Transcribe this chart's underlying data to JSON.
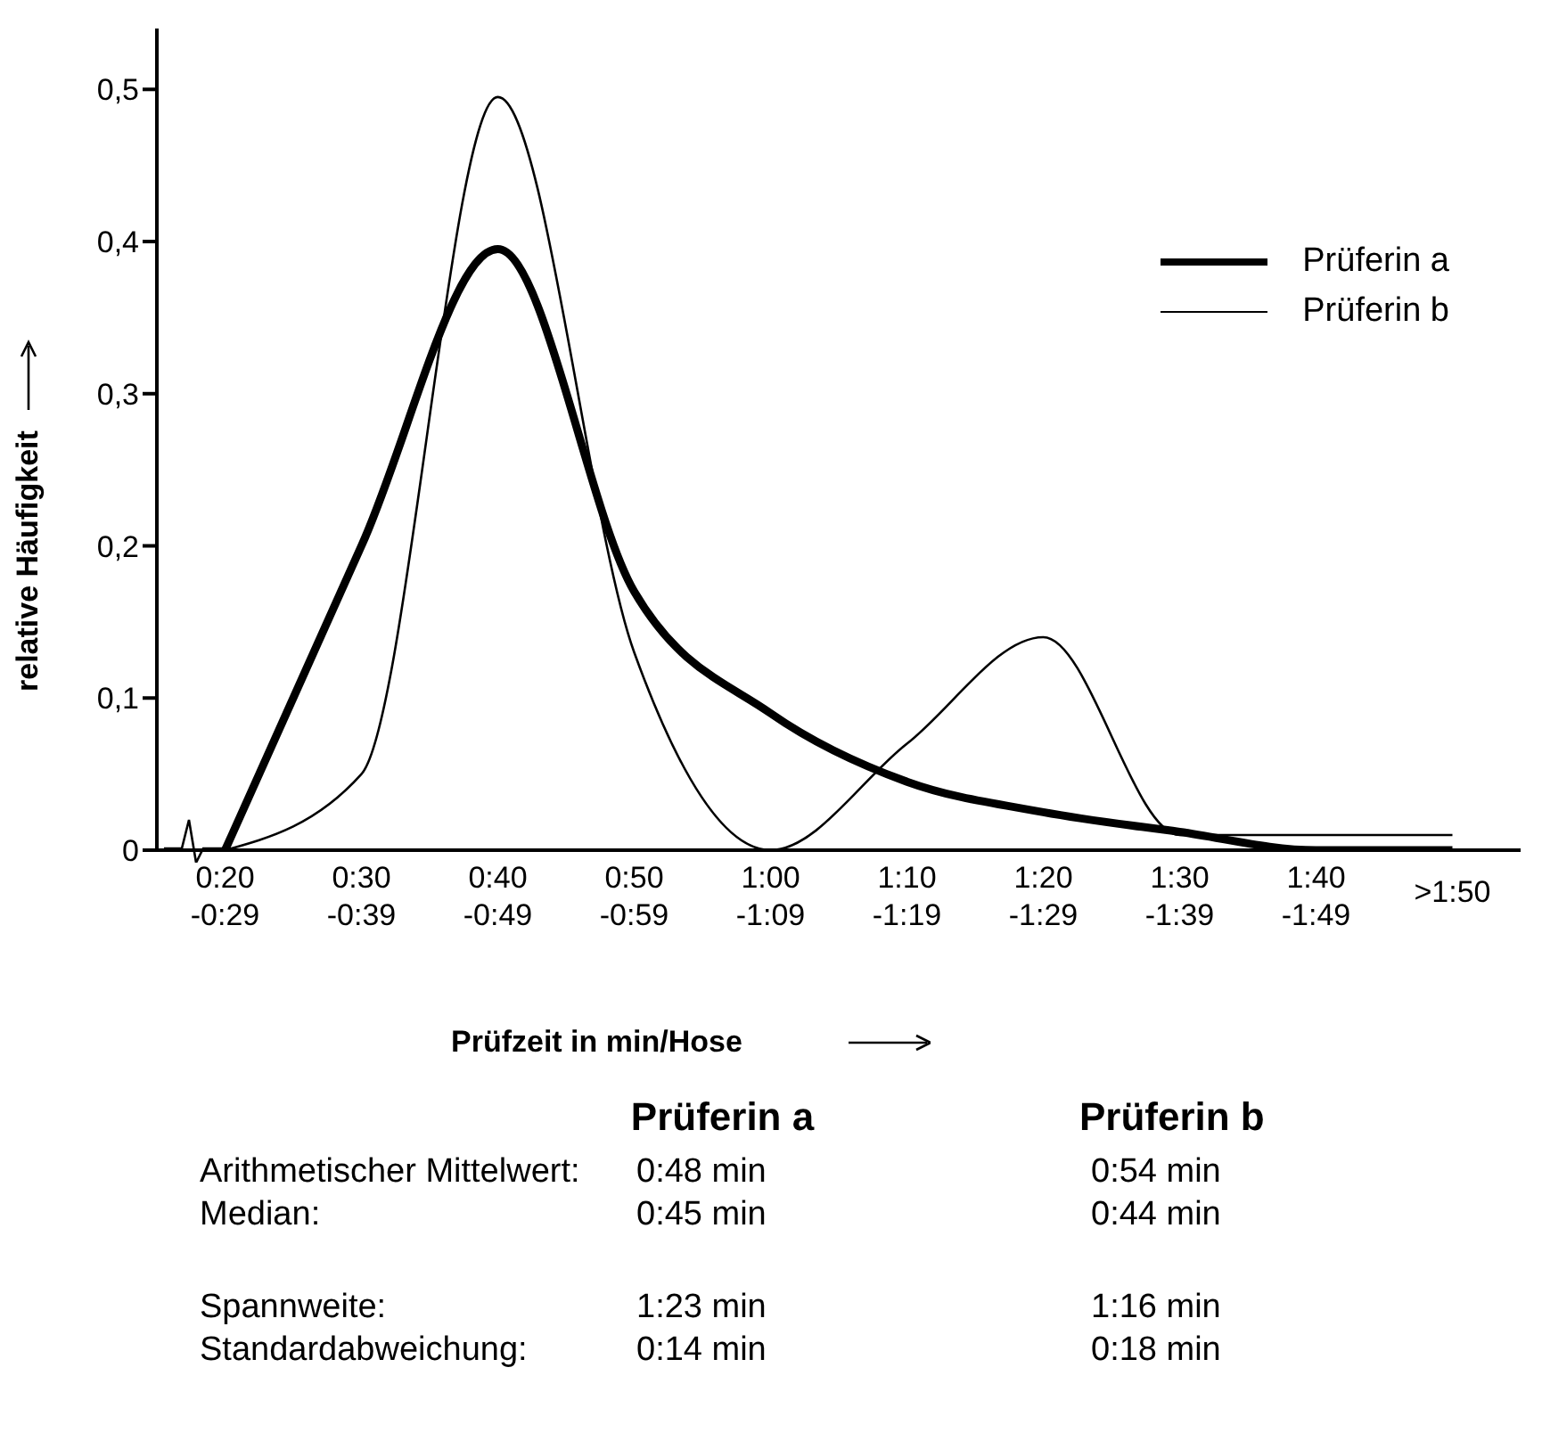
{
  "chart_data": {
    "type": "line",
    "xlabel": "Prüfzeit in min/Hose",
    "ylabel": "relative Häufigkeit",
    "categories": [
      "0:20 -0:29",
      "0:30 -0:39",
      "0:40 -0:49",
      "0:50 -0:59",
      "1:00 -1:09",
      "1:10 -1:19",
      "1:20 -1:29",
      "1:30 -1:39",
      "1:40 -1:49",
      ">1:50"
    ],
    "series": [
      {
        "name": "Prüferin a",
        "color": "#000000",
        "values": [
          0,
          0.2,
          0.395,
          0.17,
          0.09,
          0.045,
          0.025,
          0.012,
          0,
          0
        ]
      },
      {
        "name": "Prüferin b",
        "color": "#000000",
        "values": [
          0,
          0.05,
          0.495,
          0.13,
          0,
          0.07,
          0.14,
          0.01,
          0.01,
          0.01
        ]
      }
    ],
    "ylim": [
      0,
      0.54
    ],
    "yticks": [
      0,
      {
        "value": 0.1,
        "label": "0,1"
      },
      {
        "value": 0.2,
        "label": "0,2"
      },
      {
        "value": 0.3,
        "label": "0,3"
      },
      {
        "value": 0.4,
        "label": "0,4"
      },
      {
        "value": 0.5,
        "label": "0,5"
      }
    ],
    "grid": false,
    "legend": "top right",
    "marker": "none",
    "line_style": "solid",
    "annotations": [
      "Prüferin a",
      "Prüferin b",
      "Arithmetischer Mittelwert:",
      "0:48 min",
      "0:54 min",
      "Median:",
      "0:45 min",
      "0:44 min",
      "Spannweite:",
      "1:23 min",
      "1:16 min",
      "Standardabweichung:",
      "0:14 min",
      "0:18 min"
    ]
  }
}
